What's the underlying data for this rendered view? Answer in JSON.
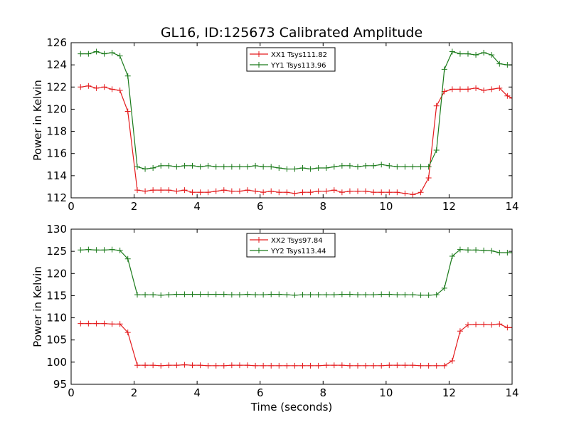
{
  "chart_data": [
    {
      "type": "line",
      "title": "GL16, ID:125673 Calibrated Amplitude",
      "xlabel": "",
      "ylabel": "Power in Kelvin",
      "xlim": [
        0,
        14
      ],
      "ylim": [
        112,
        126
      ],
      "xticks": [
        0,
        2,
        4,
        6,
        8,
        10,
        12,
        14
      ],
      "yticks": [
        112,
        114,
        116,
        118,
        120,
        122,
        124,
        126
      ],
      "legend_position": "top-center",
      "grid": false,
      "x": [
        0.3,
        0.55,
        0.8,
        1.05,
        1.3,
        1.55,
        1.8,
        2.1,
        2.35,
        2.6,
        2.85,
        3.1,
        3.35,
        3.6,
        3.85,
        4.1,
        4.35,
        4.6,
        4.85,
        5.1,
        5.35,
        5.6,
        5.85,
        6.1,
        6.35,
        6.6,
        6.85,
        7.1,
        7.35,
        7.6,
        7.85,
        8.1,
        8.35,
        8.6,
        8.85,
        9.1,
        9.35,
        9.6,
        9.85,
        10.1,
        10.35,
        10.6,
        10.85,
        11.1,
        11.35,
        11.6,
        11.85,
        12.1,
        12.35,
        12.6,
        12.85,
        13.1,
        13.35,
        13.6,
        13.85,
        14.0
      ],
      "series": [
        {
          "name": "XX1 Tsys111.82",
          "color": "#e41a1c",
          "values": [
            122.0,
            122.1,
            121.9,
            122.0,
            121.8,
            121.7,
            119.8,
            112.7,
            112.6,
            112.7,
            112.7,
            112.7,
            112.6,
            112.7,
            112.5,
            112.5,
            112.5,
            112.6,
            112.7,
            112.6,
            112.6,
            112.7,
            112.6,
            112.5,
            112.6,
            112.5,
            112.5,
            112.4,
            112.5,
            112.5,
            112.6,
            112.6,
            112.7,
            112.5,
            112.6,
            112.6,
            112.6,
            112.5,
            112.5,
            112.5,
            112.5,
            112.4,
            112.3,
            112.5,
            113.8,
            120.3,
            121.6,
            121.8,
            121.8,
            121.8,
            121.9,
            121.7,
            121.8,
            121.9,
            121.2,
            121.0
          ]
        },
        {
          "name": "YY1 Tsys113.96",
          "color": "#1a7a1a",
          "values": [
            125.0,
            125.0,
            125.2,
            125.0,
            125.1,
            124.8,
            123.0,
            114.8,
            114.6,
            114.7,
            114.9,
            114.9,
            114.8,
            114.9,
            114.9,
            114.8,
            114.9,
            114.8,
            114.8,
            114.8,
            114.8,
            114.8,
            114.9,
            114.8,
            114.8,
            114.7,
            114.6,
            114.6,
            114.7,
            114.6,
            114.7,
            114.7,
            114.8,
            114.9,
            114.9,
            114.8,
            114.9,
            114.9,
            115.0,
            114.9,
            114.8,
            114.8,
            114.8,
            114.8,
            114.8,
            116.3,
            123.6,
            125.2,
            125.0,
            125.0,
            124.9,
            125.1,
            124.9,
            124.1,
            124.0,
            124.0
          ]
        }
      ]
    },
    {
      "type": "line",
      "title": "",
      "xlabel": "Time (seconds)",
      "ylabel": "Power in Kelvin",
      "xlim": [
        0,
        14
      ],
      "ylim": [
        95,
        130
      ],
      "xticks": [
        0,
        2,
        4,
        6,
        8,
        10,
        12,
        14
      ],
      "yticks": [
        95,
        100,
        105,
        110,
        115,
        120,
        125,
        130
      ],
      "legend_position": "top-center",
      "grid": false,
      "x": [
        0.3,
        0.55,
        0.8,
        1.05,
        1.3,
        1.55,
        1.8,
        2.1,
        2.35,
        2.6,
        2.85,
        3.1,
        3.35,
        3.6,
        3.85,
        4.1,
        4.35,
        4.6,
        4.85,
        5.1,
        5.35,
        5.6,
        5.85,
        6.1,
        6.35,
        6.6,
        6.85,
        7.1,
        7.35,
        7.6,
        7.85,
        8.1,
        8.35,
        8.6,
        8.85,
        9.1,
        9.35,
        9.6,
        9.85,
        10.1,
        10.35,
        10.6,
        10.85,
        11.1,
        11.35,
        11.6,
        11.85,
        12.1,
        12.35,
        12.6,
        12.85,
        13.1,
        13.35,
        13.6,
        13.85,
        14.0
      ],
      "series": [
        {
          "name": "XX2 Tsys97.84",
          "color": "#e41a1c",
          "values": [
            108.7,
            108.7,
            108.7,
            108.7,
            108.6,
            108.6,
            106.7,
            99.3,
            99.3,
            99.3,
            99.2,
            99.3,
            99.3,
            99.4,
            99.3,
            99.3,
            99.2,
            99.2,
            99.2,
            99.3,
            99.3,
            99.3,
            99.2,
            99.2,
            99.2,
            99.2,
            99.2,
            99.2,
            99.2,
            99.2,
            99.2,
            99.3,
            99.3,
            99.3,
            99.2,
            99.2,
            99.2,
            99.2,
            99.2,
            99.3,
            99.3,
            99.3,
            99.3,
            99.2,
            99.2,
            99.2,
            99.2,
            100.3,
            107.0,
            108.4,
            108.5,
            108.5,
            108.4,
            108.6,
            107.8,
            107.8
          ]
        },
        {
          "name": "YY2 Tsys113.44",
          "color": "#1a7a1a",
          "values": [
            125.3,
            125.4,
            125.3,
            125.3,
            125.4,
            125.2,
            123.3,
            115.2,
            115.2,
            115.2,
            115.1,
            115.2,
            115.3,
            115.3,
            115.3,
            115.3,
            115.3,
            115.3,
            115.3,
            115.2,
            115.2,
            115.3,
            115.2,
            115.2,
            115.3,
            115.3,
            115.2,
            115.1,
            115.2,
            115.2,
            115.2,
            115.2,
            115.2,
            115.3,
            115.3,
            115.2,
            115.2,
            115.2,
            115.3,
            115.3,
            115.2,
            115.2,
            115.2,
            115.1,
            115.1,
            115.2,
            116.7,
            123.9,
            125.4,
            125.3,
            125.3,
            125.2,
            125.1,
            124.7,
            124.7,
            124.7
          ]
        }
      ]
    }
  ]
}
